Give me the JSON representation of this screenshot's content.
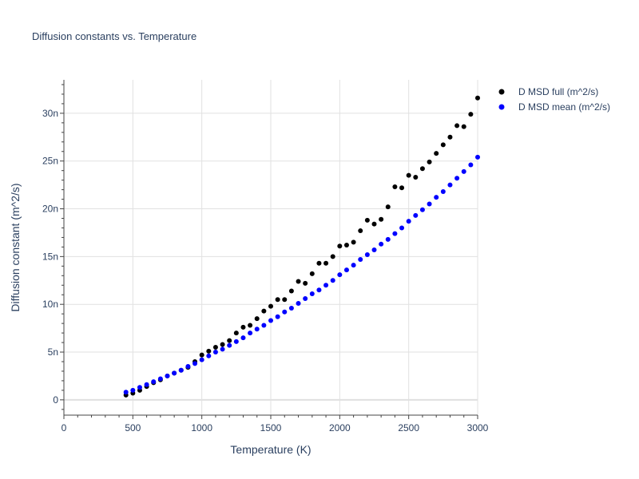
{
  "chart_data": {
    "type": "scatter",
    "title": "Diffusion constants vs. Temperature",
    "xlabel": "Temperature (K)",
    "ylabel": "Diffusion constant (m^2/s)",
    "xlim": [
      0,
      3000
    ],
    "ylim": [
      -1.6,
      33.5
    ],
    "x_ticks": [
      0,
      500,
      1000,
      1500,
      2000,
      2500,
      3000
    ],
    "x_tick_labels": [
      "0",
      "500",
      "1000",
      "1500",
      "2000",
      "2500",
      "3000"
    ],
    "y_ticks": [
      0,
      5,
      10,
      15,
      20,
      25,
      30
    ],
    "y_tick_labels": [
      "0",
      "5n",
      "10n",
      "15n",
      "20n",
      "25n",
      "30n"
    ],
    "y_unit_note": "values in units of 1e-9 m^2/s (n)",
    "grid": true,
    "legend_position": "top-right",
    "series": [
      {
        "name": "D MSD full (m^2/s)",
        "color": "#000000",
        "x": [
          450,
          500,
          550,
          600,
          650,
          700,
          750,
          800,
          850,
          900,
          950,
          1000,
          1050,
          1100,
          1150,
          1200,
          1250,
          1300,
          1350,
          1400,
          1450,
          1500,
          1550,
          1600,
          1650,
          1700,
          1750,
          1800,
          1850,
          1900,
          1950,
          2000,
          2050,
          2100,
          2150,
          2200,
          2250,
          2300,
          2350,
          2400,
          2450,
          2500,
          2550,
          2600,
          2650,
          2700,
          2750,
          2800,
          2850,
          2900,
          2950,
          3000
        ],
        "y": [
          0.5,
          0.7,
          1.0,
          1.4,
          1.8,
          2.1,
          2.5,
          2.8,
          3.1,
          3.4,
          4.0,
          4.7,
          5.1,
          5.5,
          5.8,
          6.2,
          7.0,
          7.6,
          7.8,
          8.5,
          9.3,
          9.8,
          10.5,
          10.5,
          11.4,
          12.4,
          12.2,
          13.2,
          14.3,
          14.3,
          15.0,
          16.1,
          16.2,
          16.5,
          17.7,
          18.8,
          18.4,
          18.9,
          20.2,
          22.3,
          22.2,
          23.5,
          23.3,
          24.2,
          24.9,
          25.8,
          26.7,
          27.5,
          28.7,
          28.6,
          29.9,
          31.6
        ]
      },
      {
        "name": "D MSD mean (m^2/s)",
        "color": "#0000ff",
        "x": [
          450,
          500,
          550,
          600,
          650,
          700,
          750,
          800,
          850,
          900,
          950,
          1000,
          1050,
          1100,
          1150,
          1200,
          1250,
          1300,
          1350,
          1400,
          1450,
          1500,
          1550,
          1600,
          1650,
          1700,
          1750,
          1800,
          1850,
          1900,
          1950,
          2000,
          2050,
          2100,
          2150,
          2200,
          2250,
          2300,
          2350,
          2400,
          2450,
          2500,
          2550,
          2600,
          2650,
          2700,
          2750,
          2800,
          2850,
          2900,
          2950,
          3000
        ],
        "y": [
          0.8,
          1.0,
          1.3,
          1.6,
          1.9,
          2.2,
          2.5,
          2.8,
          3.1,
          3.5,
          3.8,
          4.2,
          4.6,
          5.0,
          5.3,
          5.7,
          6.1,
          6.5,
          7.0,
          7.4,
          7.8,
          8.3,
          8.7,
          9.2,
          9.6,
          10.1,
          10.6,
          11.1,
          11.5,
          12.0,
          12.5,
          13.1,
          13.6,
          14.1,
          14.7,
          15.2,
          15.7,
          16.3,
          16.8,
          17.4,
          18.0,
          18.7,
          19.3,
          19.9,
          20.5,
          21.2,
          21.8,
          22.5,
          23.2,
          23.9,
          24.6,
          25.4
        ]
      }
    ]
  }
}
